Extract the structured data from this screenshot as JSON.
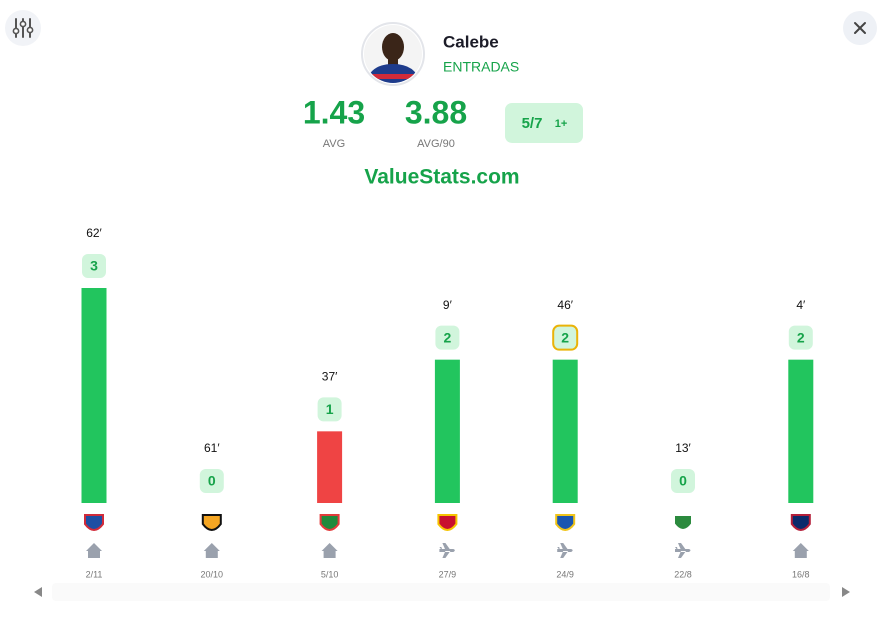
{
  "player": {
    "name": "Calebe",
    "stat": "ENTRADAS"
  },
  "summary": {
    "avg": "1.43",
    "avg_label": "AVG",
    "avg90": "3.88",
    "avg90_label": "AVG/90",
    "hits": "5/7",
    "line": "1+"
  },
  "brand": "ValueStats.com",
  "chart_data": {
    "type": "bar",
    "categories": [
      "2/11",
      "20/10",
      "5/10",
      "27/9",
      "24/9",
      "22/8",
      "16/8"
    ],
    "values": [
      3,
      0,
      1,
      2,
      2,
      0,
      2
    ],
    "minutes": [
      "62′",
      "61′",
      "37′",
      "9′",
      "46′",
      "13′",
      "4′"
    ],
    "venues": [
      "home",
      "home",
      "home",
      "away",
      "away",
      "away",
      "home"
    ],
    "colors": [
      "#22c55e",
      "#22c55e",
      "#ef4444",
      "#22c55e",
      "#22c55e",
      "#22c55e",
      "#22c55e"
    ],
    "highlight_index": 4,
    "ylim": [
      0,
      3
    ]
  }
}
